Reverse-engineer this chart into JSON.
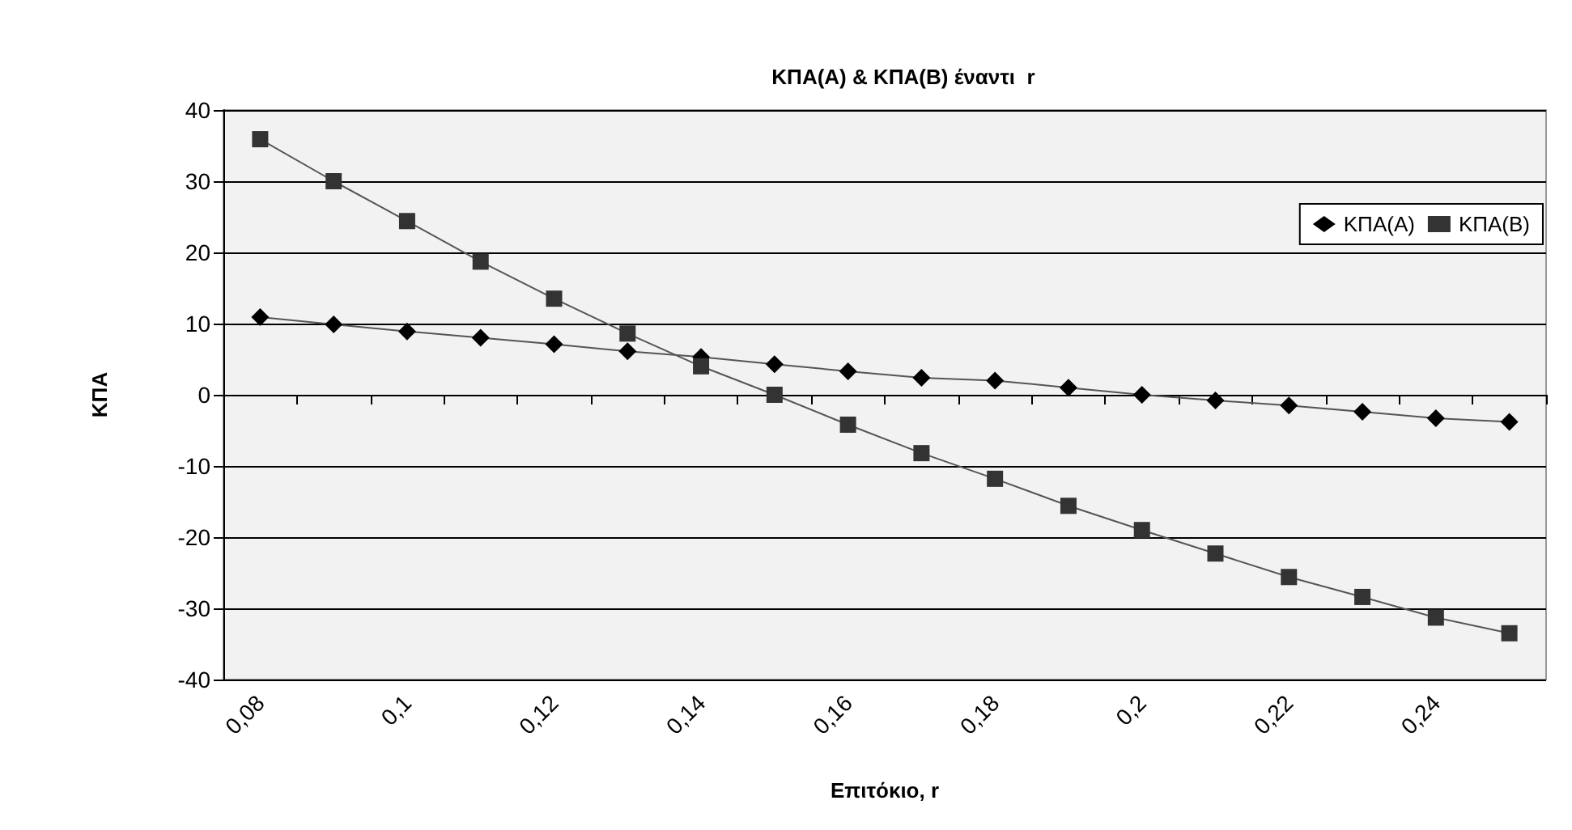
{
  "chart_data": {
    "type": "line",
    "title": "ΚΠΑ(Α) & ΚΠΑ(Β) έναντι  r",
    "xlabel": "Επιτόκιο, r",
    "ylabel": "ΚΠΑ",
    "categories": [
      "0,08",
      null,
      "0,1",
      null,
      "0,12",
      null,
      "0,14",
      null,
      "0,16",
      null,
      "0,18",
      null,
      "0,2",
      null,
      "0,22",
      null,
      "0,24",
      null
    ],
    "series": [
      {
        "name": "ΚΠΑ(Α)",
        "color": "#000000",
        "marker": "diamond",
        "values": [
          10.9,
          9.9,
          8.9,
          8,
          7.1,
          6.1,
          5.3,
          4.3,
          3.3,
          2.4,
          2,
          1,
          0,
          -0.8,
          -1.5,
          -2.4,
          -3.3,
          -3.8
        ]
      },
      {
        "name": "ΚΠΑ(Β)",
        "color": "#333333",
        "marker": "square",
        "values": [
          35.9,
          30,
          24.4,
          18.7,
          13.5,
          8.6,
          4,
          0,
          -4.2,
          -8.2,
          -11.8,
          -15.6,
          -19,
          -22.3,
          -25.6,
          -28.4,
          -31.3,
          -33.5
        ]
      }
    ],
    "ylim": [
      -40,
      40
    ],
    "yticks": [
      -40,
      -30,
      -20,
      -10,
      0,
      10,
      20,
      30,
      40
    ],
    "grid": "y",
    "legend": "top right"
  }
}
